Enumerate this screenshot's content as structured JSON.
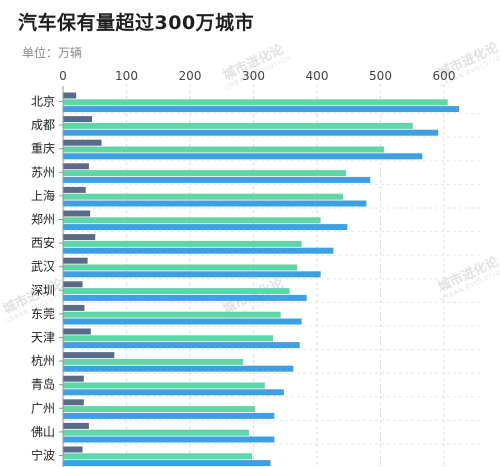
{
  "title": "汽车保有量超过300万城市",
  "unit_label": "单位：万辆",
  "watermark": {
    "text": "城市进化论",
    "sub": "URBAN EVOLUTION"
  },
  "colors": {
    "series1": "#5a6b8a",
    "series2": "#5ed6a6",
    "series3": "#3ea0e4",
    "grid": "#dddddd",
    "axis": "#999999"
  },
  "chart_data": {
    "type": "bar",
    "orientation": "horizontal",
    "title": "汽车保有量超过300万城市",
    "unit": "单位：万辆",
    "xlim": [
      0,
      650
    ],
    "xticks": [
      0,
      100,
      200,
      300,
      400,
      500,
      600
    ],
    "grid": "vertical-dashed",
    "categories": [
      "北京",
      "成都",
      "重庆",
      "苏州",
      "上海",
      "郑州",
      "西安",
      "武汉",
      "深圳",
      "东莞",
      "天津",
      "杭州",
      "青岛",
      "广州",
      "佛山",
      "宁波"
    ],
    "series": [
      {
        "values": [
          20,
          45,
          60,
          40,
          35,
          42,
          50,
          38,
          30,
          33,
          43,
          80,
          32,
          32,
          40,
          30
        ]
      },
      {
        "values": [
          605,
          550,
          505,
          445,
          440,
          405,
          375,
          368,
          356,
          342,
          330,
          283,
          317,
          302,
          292,
          297
        ]
      },
      {
        "values": [
          623,
          590,
          565,
          483,
          477,
          447,
          425,
          405,
          383,
          375,
          372,
          362,
          347,
          332,
          332,
          326
        ]
      }
    ]
  }
}
